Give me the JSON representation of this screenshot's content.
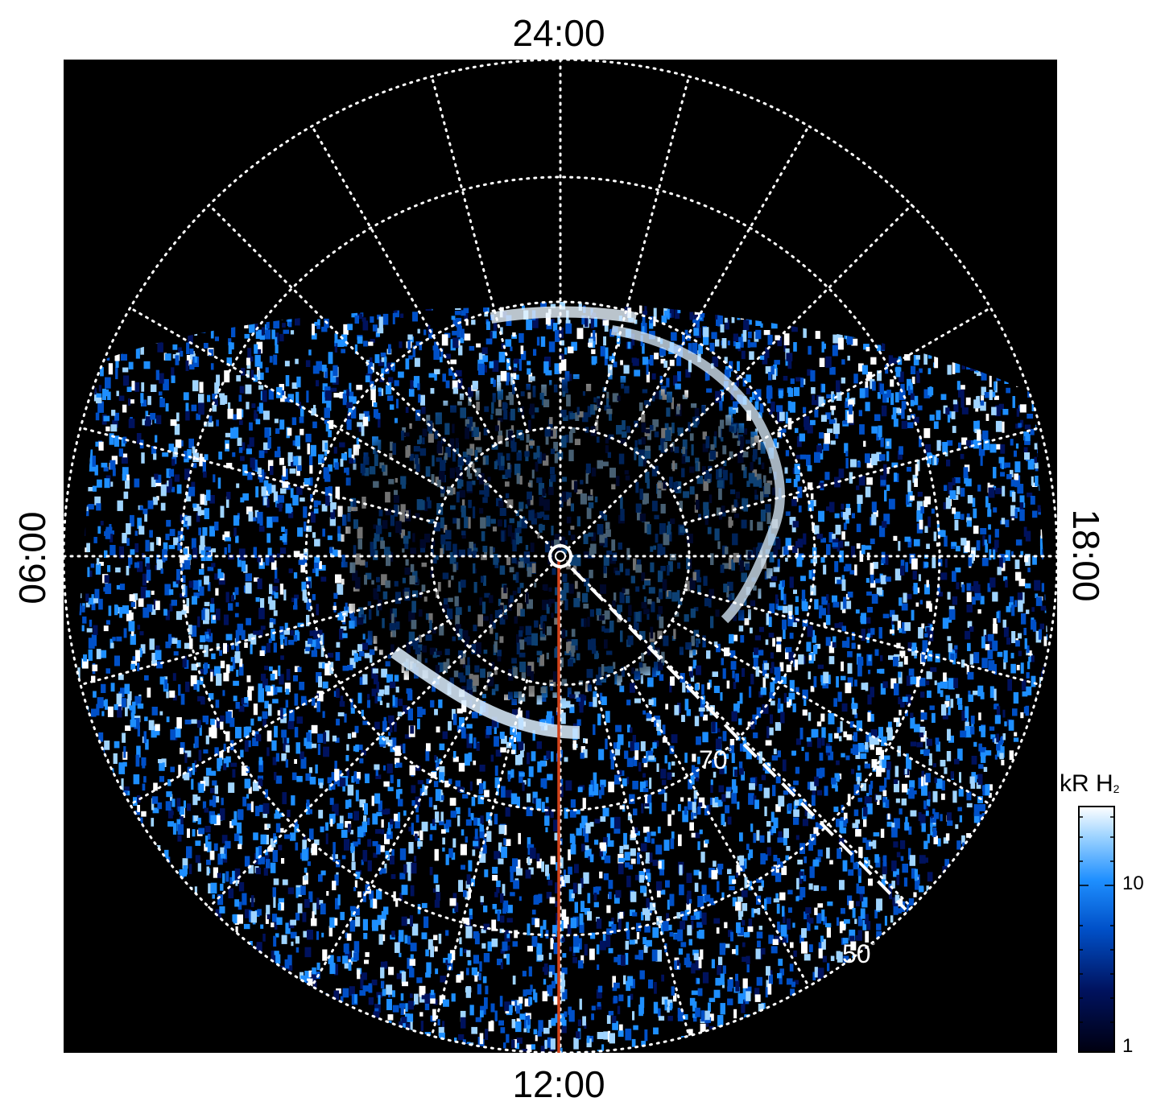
{
  "local_time_labels": {
    "top": "24:00",
    "bottom": "12:00",
    "left": "06:00",
    "right": "18:00"
  },
  "latitude_labels": {
    "inner": "70",
    "outer": "50",
    "degree_symbol": "°"
  },
  "colorbar": {
    "title_main": "kR H",
    "title_sub": "2",
    "ticks": [
      "10",
      "1"
    ],
    "scale": "log",
    "colors": [
      "#000010",
      "#00125e",
      "#0050c8",
      "#1e8fff",
      "#9fd4ff",
      "#ffffff"
    ]
  },
  "colors": {
    "background": "#000000",
    "aurora_bright": "#dcefff",
    "aurora_mid": "#1e8fff",
    "grid": "#ffffff",
    "noon_meridian": "#d2421a"
  }
}
